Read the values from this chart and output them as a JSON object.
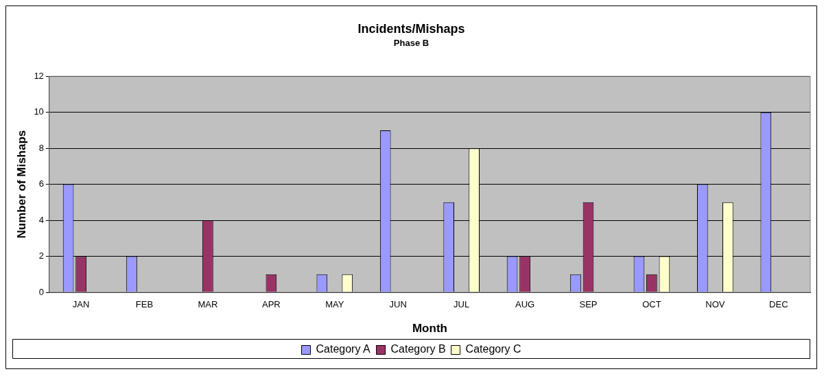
{
  "chart_data": {
    "type": "bar",
    "title": "Incidents/Mishaps",
    "subtitle": "Phase B",
    "xlabel": "Month",
    "ylabel": "Number of Mishaps",
    "categories": [
      "JAN",
      "FEB",
      "MAR",
      "APR",
      "MAY",
      "JUN",
      "JUL",
      "AUG",
      "SEP",
      "OCT",
      "NOV",
      "DEC"
    ],
    "series": [
      {
        "name": "Category A",
        "color": "#9999ff",
        "values": [
          6,
          2,
          0,
          0,
          1,
          9,
          5,
          2,
          1,
          2,
          6,
          10
        ]
      },
      {
        "name": "Category B",
        "color": "#993366",
        "values": [
          2,
          0,
          4,
          1,
          0,
          0,
          0,
          2,
          5,
          1,
          0,
          0
        ]
      },
      {
        "name": "Category C",
        "color": "#ffffcc",
        "values": [
          0,
          0,
          0,
          0,
          1,
          0,
          8,
          0,
          0,
          2,
          5,
          0
        ]
      }
    ],
    "ylim": [
      0,
      12
    ],
    "yticks": [
      0,
      2,
      4,
      6,
      8,
      10,
      12
    ],
    "grid": "y",
    "legend": "bottom"
  }
}
